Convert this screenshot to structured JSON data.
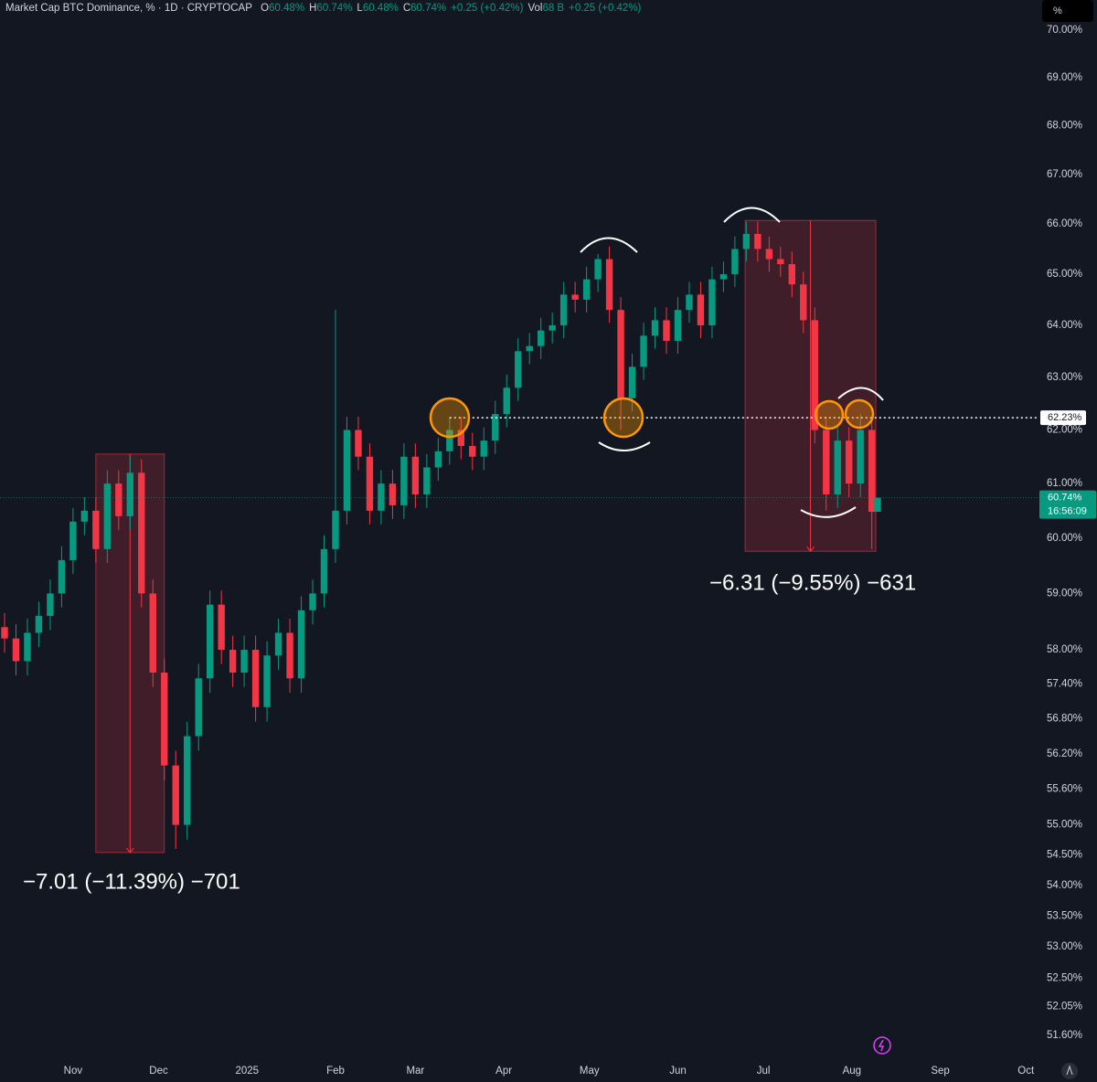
{
  "chart_data": {
    "type": "candlestick",
    "title": "Market Cap BTC Dominance, % · 1D · CRYPTOCAP",
    "ohlc_legend": [
      {
        "label": "O",
        "value": "60.48%"
      },
      {
        "label": "H",
        "value": "60.74%"
      },
      {
        "label": "L",
        "value": "60.48%"
      },
      {
        "label": "C",
        "value": "60.74%"
      },
      {
        "label": "",
        "value": "+0.25 (+0.42%)"
      },
      {
        "label": "Vol",
        "value": "68 B"
      },
      {
        "label": "",
        "value": "+0.25 (+0.42%)"
      }
    ],
    "scale_button": "%",
    "x": [
      -24,
      -20,
      -16,
      -12,
      -8,
      -4,
      0,
      4,
      8,
      12,
      16,
      20,
      24,
      28,
      32,
      36,
      40,
      44,
      48,
      52,
      56,
      60,
      64,
      68,
      72,
      76,
      80,
      84,
      88,
      92,
      96,
      100,
      104,
      108,
      112,
      116,
      120,
      124,
      128,
      132,
      136,
      140,
      144,
      148,
      152,
      156,
      160,
      164,
      168,
      172,
      176,
      180,
      184,
      188,
      192,
      196,
      200,
      204,
      208,
      212,
      216,
      220,
      224,
      228,
      232,
      236,
      240,
      244,
      248,
      252,
      256,
      260,
      264,
      268,
      272,
      276,
      280,
      282
    ],
    "open": [
      58.4,
      58.2,
      57.8,
      58.3,
      58.6,
      59.0,
      59.6,
      60.3,
      60.5,
      59.8,
      61.0,
      60.4,
      61.2,
      59.0,
      57.6,
      56.0,
      55.0,
      56.5,
      57.5,
      58.8,
      58.0,
      57.6,
      58.0,
      57.0,
      57.9,
      58.3,
      57.5,
      58.7,
      59.0,
      59.8,
      60.5,
      62.0,
      61.5,
      60.5,
      61.0,
      60.6,
      61.5,
      60.8,
      61.3,
      61.6,
      62.0,
      61.7,
      61.5,
      61.8,
      62.3,
      62.8,
      63.5,
      63.6,
      63.9,
      64.0,
      64.6,
      64.5,
      64.9,
      65.3,
      64.3,
      62.6,
      63.2,
      63.8,
      64.1,
      63.7,
      64.3,
      64.6,
      64.0,
      64.9,
      65.0,
      65.5,
      65.8,
      65.5,
      65.3,
      65.2,
      64.8,
      64.1,
      62.0,
      60.8,
      61.8,
      61.0,
      62.0,
      60.48
    ],
    "high": [
      58.65,
      58.45,
      58.55,
      58.85,
      59.25,
      59.85,
      60.55,
      60.75,
      60.75,
      61.25,
      61.25,
      61.5,
      61.45,
      59.25,
      57.85,
      56.25,
      56.75,
      57.75,
      59.05,
      59.05,
      58.25,
      58.25,
      58.25,
      58.15,
      58.55,
      58.55,
      58.95,
      59.25,
      60.05,
      64.3,
      62.25,
      62.25,
      61.75,
      61.25,
      61.25,
      61.75,
      61.75,
      61.55,
      61.85,
      62.25,
      62.25,
      61.95,
      62.05,
      62.55,
      63.05,
      63.75,
      63.85,
      64.15,
      64.25,
      64.85,
      64.85,
      65.15,
      65.4,
      65.55,
      64.55,
      63.45,
      64.05,
      64.35,
      64.35,
      64.55,
      64.85,
      64.85,
      65.15,
      65.25,
      65.75,
      66.05,
      66.05,
      65.75,
      65.55,
      65.45,
      65.05,
      64.35,
      62.25,
      62.05,
      62.05,
      62.3,
      62.25,
      60.74
    ],
    "low": [
      57.95,
      57.55,
      57.55,
      58.05,
      58.35,
      58.75,
      59.35,
      60.05,
      59.55,
      59.55,
      60.15,
      60.15,
      58.75,
      57.35,
      55.75,
      54.6,
      54.75,
      56.25,
      57.25,
      57.75,
      57.35,
      57.35,
      56.75,
      56.75,
      57.65,
      57.25,
      57.25,
      58.45,
      58.75,
      59.55,
      60.25,
      61.25,
      60.25,
      60.25,
      60.35,
      60.35,
      60.55,
      60.55,
      61.05,
      61.35,
      61.45,
      61.25,
      61.25,
      61.55,
      62.05,
      62.55,
      63.25,
      63.35,
      63.65,
      63.75,
      64.25,
      64.25,
      64.65,
      64.05,
      62.0,
      62.35,
      62.95,
      63.55,
      63.45,
      63.45,
      64.05,
      63.75,
      63.75,
      64.65,
      64.75,
      65.25,
      65.25,
      65.05,
      64.95,
      64.55,
      63.85,
      61.75,
      60.5,
      60.55,
      60.75,
      60.75,
      59.8,
      60.48
    ],
    "close": [
      58.2,
      57.8,
      58.3,
      58.6,
      59.0,
      59.6,
      60.3,
      60.5,
      59.8,
      61.0,
      60.4,
      61.2,
      59.0,
      57.6,
      56.0,
      55.0,
      56.5,
      57.5,
      58.8,
      58.0,
      57.6,
      58.0,
      57.0,
      57.9,
      58.3,
      57.5,
      58.7,
      59.0,
      59.8,
      60.5,
      62.0,
      61.5,
      60.5,
      61.0,
      60.6,
      61.5,
      60.8,
      61.3,
      61.6,
      62.0,
      61.7,
      61.5,
      61.8,
      62.3,
      62.8,
      63.5,
      63.6,
      63.9,
      64.0,
      64.6,
      64.5,
      64.9,
      65.3,
      64.3,
      62.6,
      63.2,
      63.8,
      64.1,
      63.7,
      64.3,
      64.6,
      64.0,
      64.9,
      65.0,
      65.5,
      65.8,
      65.5,
      65.3,
      65.2,
      64.8,
      64.1,
      62.0,
      60.8,
      61.8,
      61.0,
      62.0,
      60.48,
      60.74
    ],
    "up_color": "#089981",
    "down_color": "#f23645",
    "log_scale": true,
    "grid": false,
    "xlim": [
      -25.6,
      338.1
    ],
    "xticks": [
      {
        "value": 0,
        "label": "Nov"
      },
      {
        "value": 30,
        "label": "Dec"
      },
      {
        "value": 61,
        "label": "2025"
      },
      {
        "value": 92,
        "label": "Feb"
      },
      {
        "value": 120,
        "label": "Mar"
      },
      {
        "value": 151,
        "label": "Apr"
      },
      {
        "value": 181,
        "label": "May"
      },
      {
        "value": 212,
        "label": "Jun"
      },
      {
        "value": 242,
        "label": "Jul"
      },
      {
        "value": 273,
        "label": "Aug"
      },
      {
        "value": 304,
        "label": "Sep"
      },
      {
        "value": 334,
        "label": "Oct"
      }
    ],
    "ylim": [
      51.24,
      70.64
    ],
    "yticks": [
      {
        "value": 70,
        "label": "70.00%"
      },
      {
        "value": 69,
        "label": "69.00%"
      },
      {
        "value": 68,
        "label": "68.00%"
      },
      {
        "value": 67,
        "label": "67.00%"
      },
      {
        "value": 66,
        "label": "66.00%"
      },
      {
        "value": 65,
        "label": "65.00%"
      },
      {
        "value": 64,
        "label": "64.00%"
      },
      {
        "value": 63,
        "label": "63.00%"
      },
      {
        "value": 62,
        "label": "62.00%"
      },
      {
        "value": 61,
        "label": "61.00%"
      },
      {
        "value": 60,
        "label": "60.00%"
      },
      {
        "value": 59,
        "label": "59.00%"
      },
      {
        "value": 58,
        "label": "58.00%"
      },
      {
        "value": 57.4,
        "label": "57.40%"
      },
      {
        "value": 56.8,
        "label": "56.80%"
      },
      {
        "value": 56.2,
        "label": "56.20%"
      },
      {
        "value": 55.6,
        "label": "55.60%"
      },
      {
        "value": 55,
        "label": "55.00%"
      },
      {
        "value": 54.5,
        "label": "54.50%"
      },
      {
        "value": 54,
        "label": "54.00%"
      },
      {
        "value": 53.5,
        "label": "53.50%"
      },
      {
        "value": 53,
        "label": "53.00%"
      },
      {
        "value": 52.5,
        "label": "52.50%"
      },
      {
        "value": 52.05,
        "label": "52.05%"
      },
      {
        "value": 51.6,
        "label": "51.60%"
      }
    ],
    "measures": [
      {
        "xrange": [
          8,
          32
        ],
        "yrange": [
          54.54,
          61.55
        ],
        "label": "−7.01 (−11.39%) −701"
      },
      {
        "xrange": [
          235.6,
          281.4
        ],
        "yrange": [
          59.76,
          66.07
        ],
        "label": "−6.31 (−9.55%) −631"
      }
    ],
    "hline": {
      "value": 62.23,
      "label": "62.23%",
      "from": 132
    },
    "last_price": {
      "value": 60.74,
      "label": "60.74%",
      "countdown": "16:56:09"
    }
  }
}
